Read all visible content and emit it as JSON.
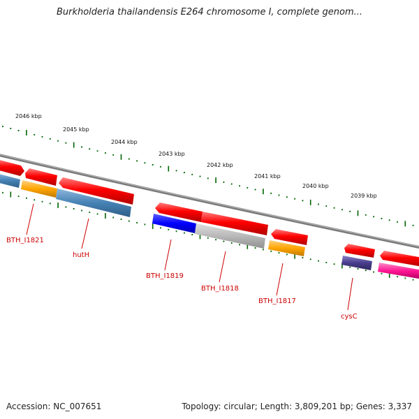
{
  "title": "Burkholderia thailandensis E264 chromosome I, complete genom...",
  "footer": {
    "accession": "Accession: NC_007651",
    "summary": "Topology: circular; Length: 3,809,201 bp; Genes: 3,337"
  },
  "scale_labels": [
    "2046 kbp",
    "2045 kbp",
    "2044 kbp",
    "2043 kbp",
    "2042 kbp",
    "2041 kbp",
    "2040 kbp",
    "2039 kbp"
  ],
  "gene_labels": [
    "BTH_I1821",
    "hutH",
    "BTH_I1819",
    "BTH_I1818",
    "BTH_I1817",
    "cysC"
  ],
  "colors": {
    "gene_red": "#ff0000",
    "steelblue": "#4682b4",
    "orange": "#ffa500",
    "blue": "#0000ff",
    "gray": "#b0b0b0",
    "darkslate": "#483d8b",
    "pink": "#ff1493",
    "tick_green": "#006400",
    "backbone": "#808080",
    "label_red": "#cc0000"
  }
}
